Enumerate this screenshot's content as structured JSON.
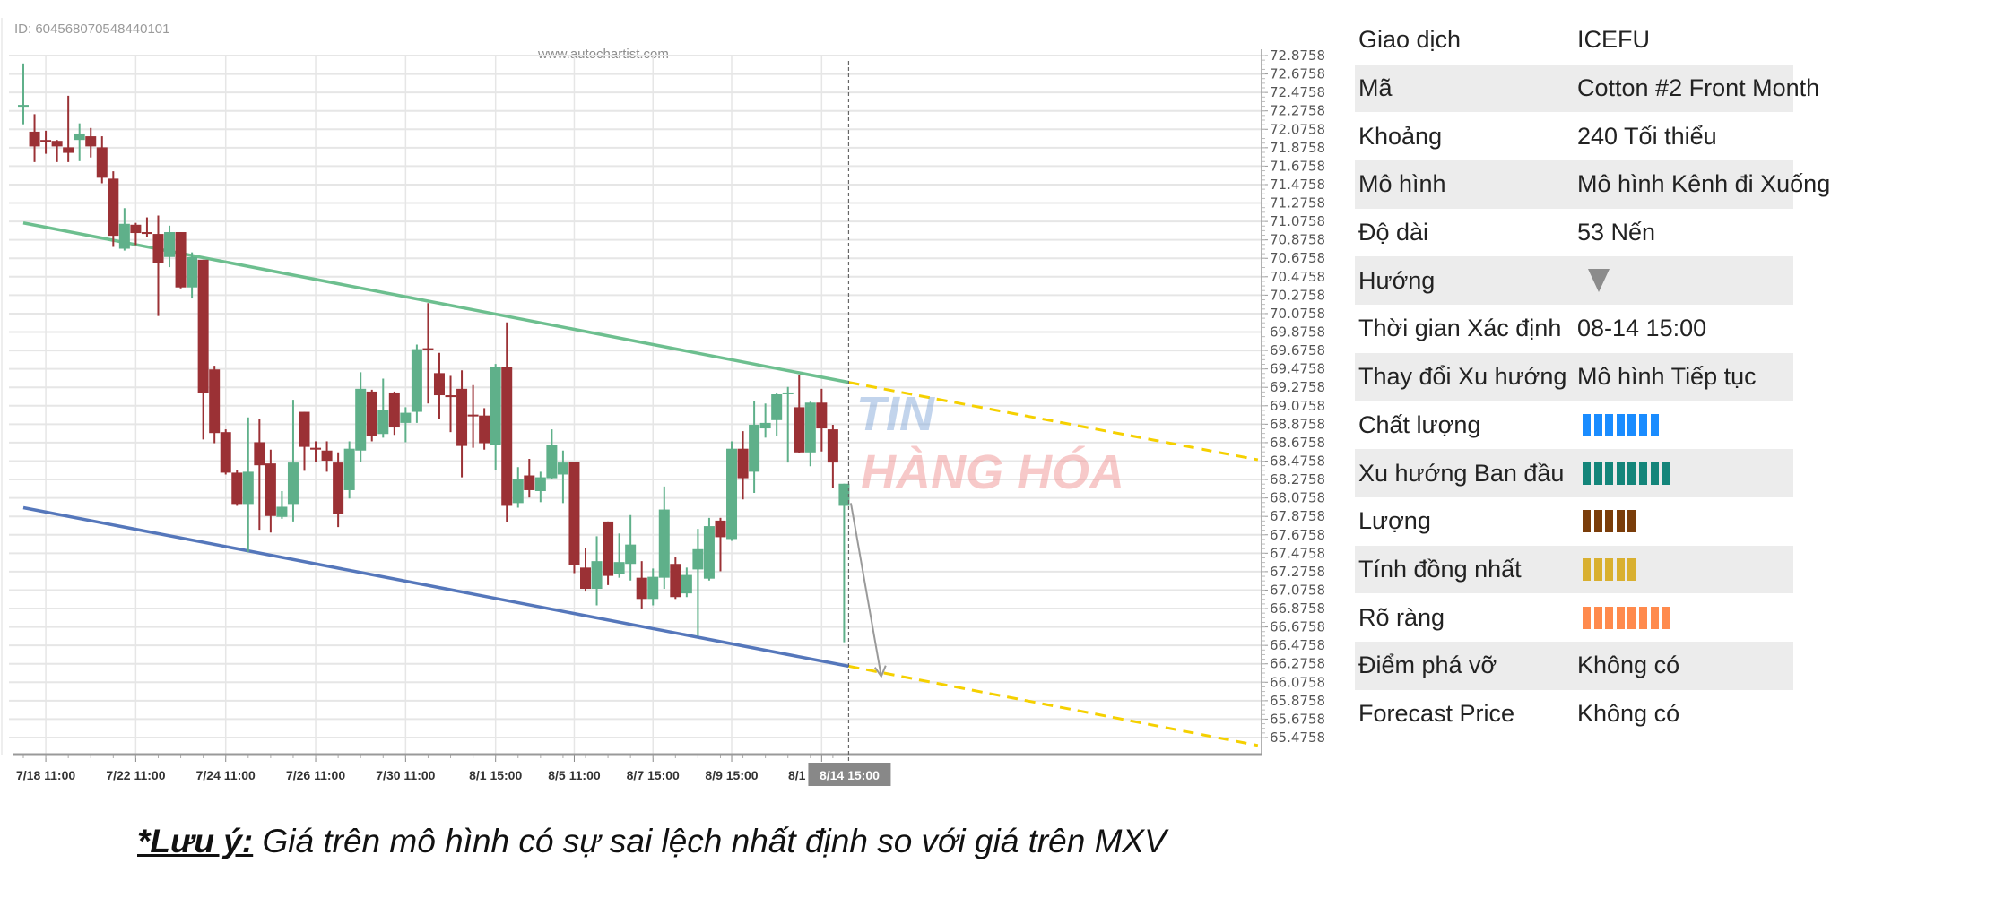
{
  "header": {
    "id_text": "ID: 604568070548440101",
    "site": "www.autochartist.com"
  },
  "logo": {
    "text_line1": "TIN",
    "text_line2": "HÀNG HÓA"
  },
  "chart_data": {
    "type": "candlestick",
    "ohlc_order": [
      "open",
      "high",
      "low",
      "close"
    ],
    "ohlc": [
      [
        72.34,
        72.79,
        72.13,
        72.34
      ],
      [
        72.05,
        72.24,
        71.72,
        71.89
      ],
      [
        71.96,
        72.06,
        71.81,
        71.95
      ],
      [
        71.95,
        71.96,
        71.72,
        71.89
      ],
      [
        71.88,
        72.44,
        71.72,
        71.82
      ],
      [
        71.96,
        72.14,
        71.73,
        72.03
      ],
      [
        72.0,
        72.09,
        71.77,
        71.89
      ],
      [
        71.88,
        72.0,
        71.49,
        71.55
      ],
      [
        71.54,
        71.62,
        70.8,
        70.92
      ],
      [
        70.78,
        71.22,
        70.76,
        71.05
      ],
      [
        71.04,
        71.06,
        70.82,
        70.95
      ],
      [
        70.96,
        71.12,
        70.91,
        70.94
      ],
      [
        70.94,
        71.14,
        70.05,
        70.62
      ],
      [
        70.69,
        71.03,
        70.58,
        70.96
      ],
      [
        70.96,
        70.96,
        70.35,
        70.36
      ],
      [
        70.36,
        70.74,
        70.24,
        70.69
      ],
      [
        70.66,
        70.66,
        68.71,
        69.21
      ],
      [
        69.47,
        69.51,
        68.67,
        68.78
      ],
      [
        68.79,
        68.82,
        68.33,
        68.35
      ],
      [
        68.35,
        68.38,
        67.99,
        68.01
      ],
      [
        68.01,
        68.95,
        67.49,
        68.36
      ],
      [
        68.68,
        68.93,
        67.73,
        68.43
      ],
      [
        68.45,
        68.6,
        67.7,
        67.88
      ],
      [
        67.87,
        68.15,
        67.85,
        67.98
      ],
      [
        68.01,
        69.14,
        67.82,
        68.46
      ],
      [
        69.01,
        69.01,
        68.37,
        68.63
      ],
      [
        68.62,
        68.69,
        68.47,
        68.6
      ],
      [
        68.59,
        68.69,
        68.36,
        68.48
      ],
      [
        68.46,
        68.57,
        67.76,
        67.9
      ],
      [
        68.16,
        68.69,
        68.07,
        68.61
      ],
      [
        68.59,
        69.44,
        68.47,
        69.26
      ],
      [
        69.23,
        69.25,
        68.69,
        68.75
      ],
      [
        68.77,
        69.37,
        68.73,
        69.03
      ],
      [
        69.22,
        69.23,
        68.76,
        68.84
      ],
      [
        68.89,
        69.06,
        68.68,
        69.0
      ],
      [
        69.01,
        69.74,
        68.89,
        69.69
      ],
      [
        69.7,
        70.19,
        69.1,
        69.68
      ],
      [
        69.43,
        69.65,
        68.93,
        69.19
      ],
      [
        69.19,
        69.4,
        68.79,
        69.17
      ],
      [
        69.26,
        69.46,
        68.3,
        68.64
      ],
      [
        68.98,
        69.3,
        68.62,
        68.97
      ],
      [
        68.97,
        69.05,
        68.6,
        68.67
      ],
      [
        68.65,
        69.53,
        68.38,
        69.5
      ],
      [
        69.5,
        69.98,
        67.81,
        67.99
      ],
      [
        68.02,
        68.41,
        67.97,
        68.28
      ],
      [
        68.32,
        68.5,
        68.08,
        68.16
      ],
      [
        68.15,
        68.36,
        68.03,
        68.3
      ],
      [
        68.29,
        68.82,
        68.28,
        68.65
      ],
      [
        68.33,
        68.59,
        68.02,
        68.46
      ],
      [
        68.47,
        68.47,
        67.26,
        67.35
      ],
      [
        67.32,
        67.53,
        67.06,
        67.09
      ],
      [
        67.09,
        67.66,
        66.91,
        67.39
      ],
      [
        67.82,
        67.82,
        67.13,
        67.23
      ],
      [
        67.25,
        67.69,
        67.21,
        67.38
      ],
      [
        67.36,
        67.89,
        67.18,
        67.57
      ],
      [
        67.21,
        67.39,
        66.87,
        66.98
      ],
      [
        66.98,
        67.31,
        66.91,
        67.22
      ],
      [
        67.21,
        68.2,
        67.09,
        67.95
      ],
      [
        67.36,
        67.43,
        66.98,
        67.0
      ],
      [
        67.04,
        67.32,
        67.0,
        67.24
      ],
      [
        67.3,
        67.74,
        66.58,
        67.52
      ],
      [
        67.2,
        67.86,
        67.18,
        67.77
      ],
      [
        67.83,
        67.86,
        67.28,
        67.65
      ],
      [
        67.63,
        68.69,
        67.61,
        68.61
      ],
      [
        68.61,
        68.8,
        68.06,
        68.29
      ],
      [
        68.36,
        69.13,
        68.13,
        68.87
      ],
      [
        68.83,
        69.1,
        68.73,
        68.89
      ],
      [
        68.92,
        69.21,
        68.75,
        69.2
      ],
      [
        69.21,
        69.28,
        68.46,
        69.22
      ],
      [
        69.06,
        69.41,
        68.56,
        68.57
      ],
      [
        68.57,
        69.12,
        68.42,
        69.11
      ],
      [
        69.11,
        69.26,
        68.58,
        68.83
      ],
      [
        68.82,
        68.87,
        68.18,
        68.46
      ],
      [
        67.99,
        68.23,
        66.51,
        68.23
      ]
    ],
    "y_ticks": [
      "72.8758",
      "72.6758",
      "72.4758",
      "72.2758",
      "72.0758",
      "71.8758",
      "71.6758",
      "71.4758",
      "71.2758",
      "71.0758",
      "70.8758",
      "70.6758",
      "70.4758",
      "70.2758",
      "70.0758",
      "69.8758",
      "69.6758",
      "69.4758",
      "69.2758",
      "69.0758",
      "68.8758",
      "68.6758",
      "68.4758",
      "68.2758",
      "68.0758",
      "67.8758",
      "67.6758",
      "67.4758",
      "67.2758",
      "67.0758",
      "66.8758",
      "66.6758",
      "66.4758",
      "66.2758",
      "66.0758",
      "65.8758",
      "65.6758",
      "65.4758"
    ],
    "ylim": [
      65.4758,
      72.8758
    ],
    "x_ticks": [
      {
        "label": "7/18 11:00",
        "candle": 2
      },
      {
        "label": "7/22 11:00",
        "candle": 10
      },
      {
        "label": "7/24 11:00",
        "candle": 18
      },
      {
        "label": "7/26 11:00",
        "candle": 26
      },
      {
        "label": "7/30 11:00",
        "candle": 34
      },
      {
        "label": "8/1 15:00",
        "candle": 42
      },
      {
        "label": "8/5 11:00",
        "candle": 49
      },
      {
        "label": "8/7 15:00",
        "candle": 56
      },
      {
        "label": "8/9 15:00",
        "candle": 63
      },
      {
        "label": "8/1",
        "candle": 71
      }
    ],
    "highlight_x": {
      "label": "8/14 15:00",
      "candle": 73.4
    },
    "resistance_line": {
      "from": [
        0,
        71.06
      ],
      "to": [
        73.4,
        69.33
      ],
      "color": "#6dbf8f"
    },
    "support_line": {
      "from": [
        0,
        67.97
      ],
      "to": [
        73.4,
        66.25
      ],
      "color": "#5577bb"
    },
    "forecast_upper": {
      "from": [
        73.4,
        69.33
      ],
      "to": [
        109.8,
        68.49
      ],
      "color": "#f5d000"
    },
    "forecast_lower": {
      "from": [
        73.4,
        66.25
      ],
      "to": [
        109.8,
        65.39
      ],
      "color": "#f5d000"
    },
    "arrow": {
      "from": [
        73.6,
        68.02
      ],
      "to": [
        76.3,
        66.14
      ],
      "color": "#9a9a9a"
    },
    "colors": {
      "up": "#5fb08a",
      "down": "#9b3135"
    },
    "grid": true
  },
  "info": {
    "rows": [
      {
        "label": "Giao dịch",
        "value": "ICEFU"
      },
      {
        "label": "Mã",
        "value": "Cotton #2 Front Month"
      },
      {
        "label": "Khoảng",
        "value": "240 Tối thiểu"
      },
      {
        "label": "Mô hình",
        "value": "Mô hình Kênh đi Xuống"
      },
      {
        "label": "Độ dài",
        "value": "53 Nến"
      },
      {
        "label": "Hướng",
        "icon": "triangle-down-icon"
      },
      {
        "label": "Thời gian Xác định",
        "value": "08-14 15:00"
      },
      {
        "label": "Thay đổi Xu hướng",
        "value": "Mô hình Tiếp tục"
      },
      {
        "label": "Chất lượng",
        "bars": 7,
        "color": "#1a8cff"
      },
      {
        "label": "Xu hướng Ban đầu",
        "bars": 8,
        "color": "#14857a"
      },
      {
        "label": "Lượng",
        "bars": 5,
        "color": "#7a3d0a"
      },
      {
        "label": "Tính đồng nhất",
        "bars": 5,
        "color": "#d9b030"
      },
      {
        "label": "Rõ ràng",
        "bars": 8,
        "color": "#ff8a4d"
      },
      {
        "label": "Điểm phá vỡ",
        "value": "Không có"
      },
      {
        "label": "Forecast Price",
        "value": "Không có"
      }
    ]
  },
  "note": {
    "prefix": "*Lưu ý:",
    "text": " Giá trên mô hình có sự sai lệch nhất định so với giá trên MXV"
  }
}
